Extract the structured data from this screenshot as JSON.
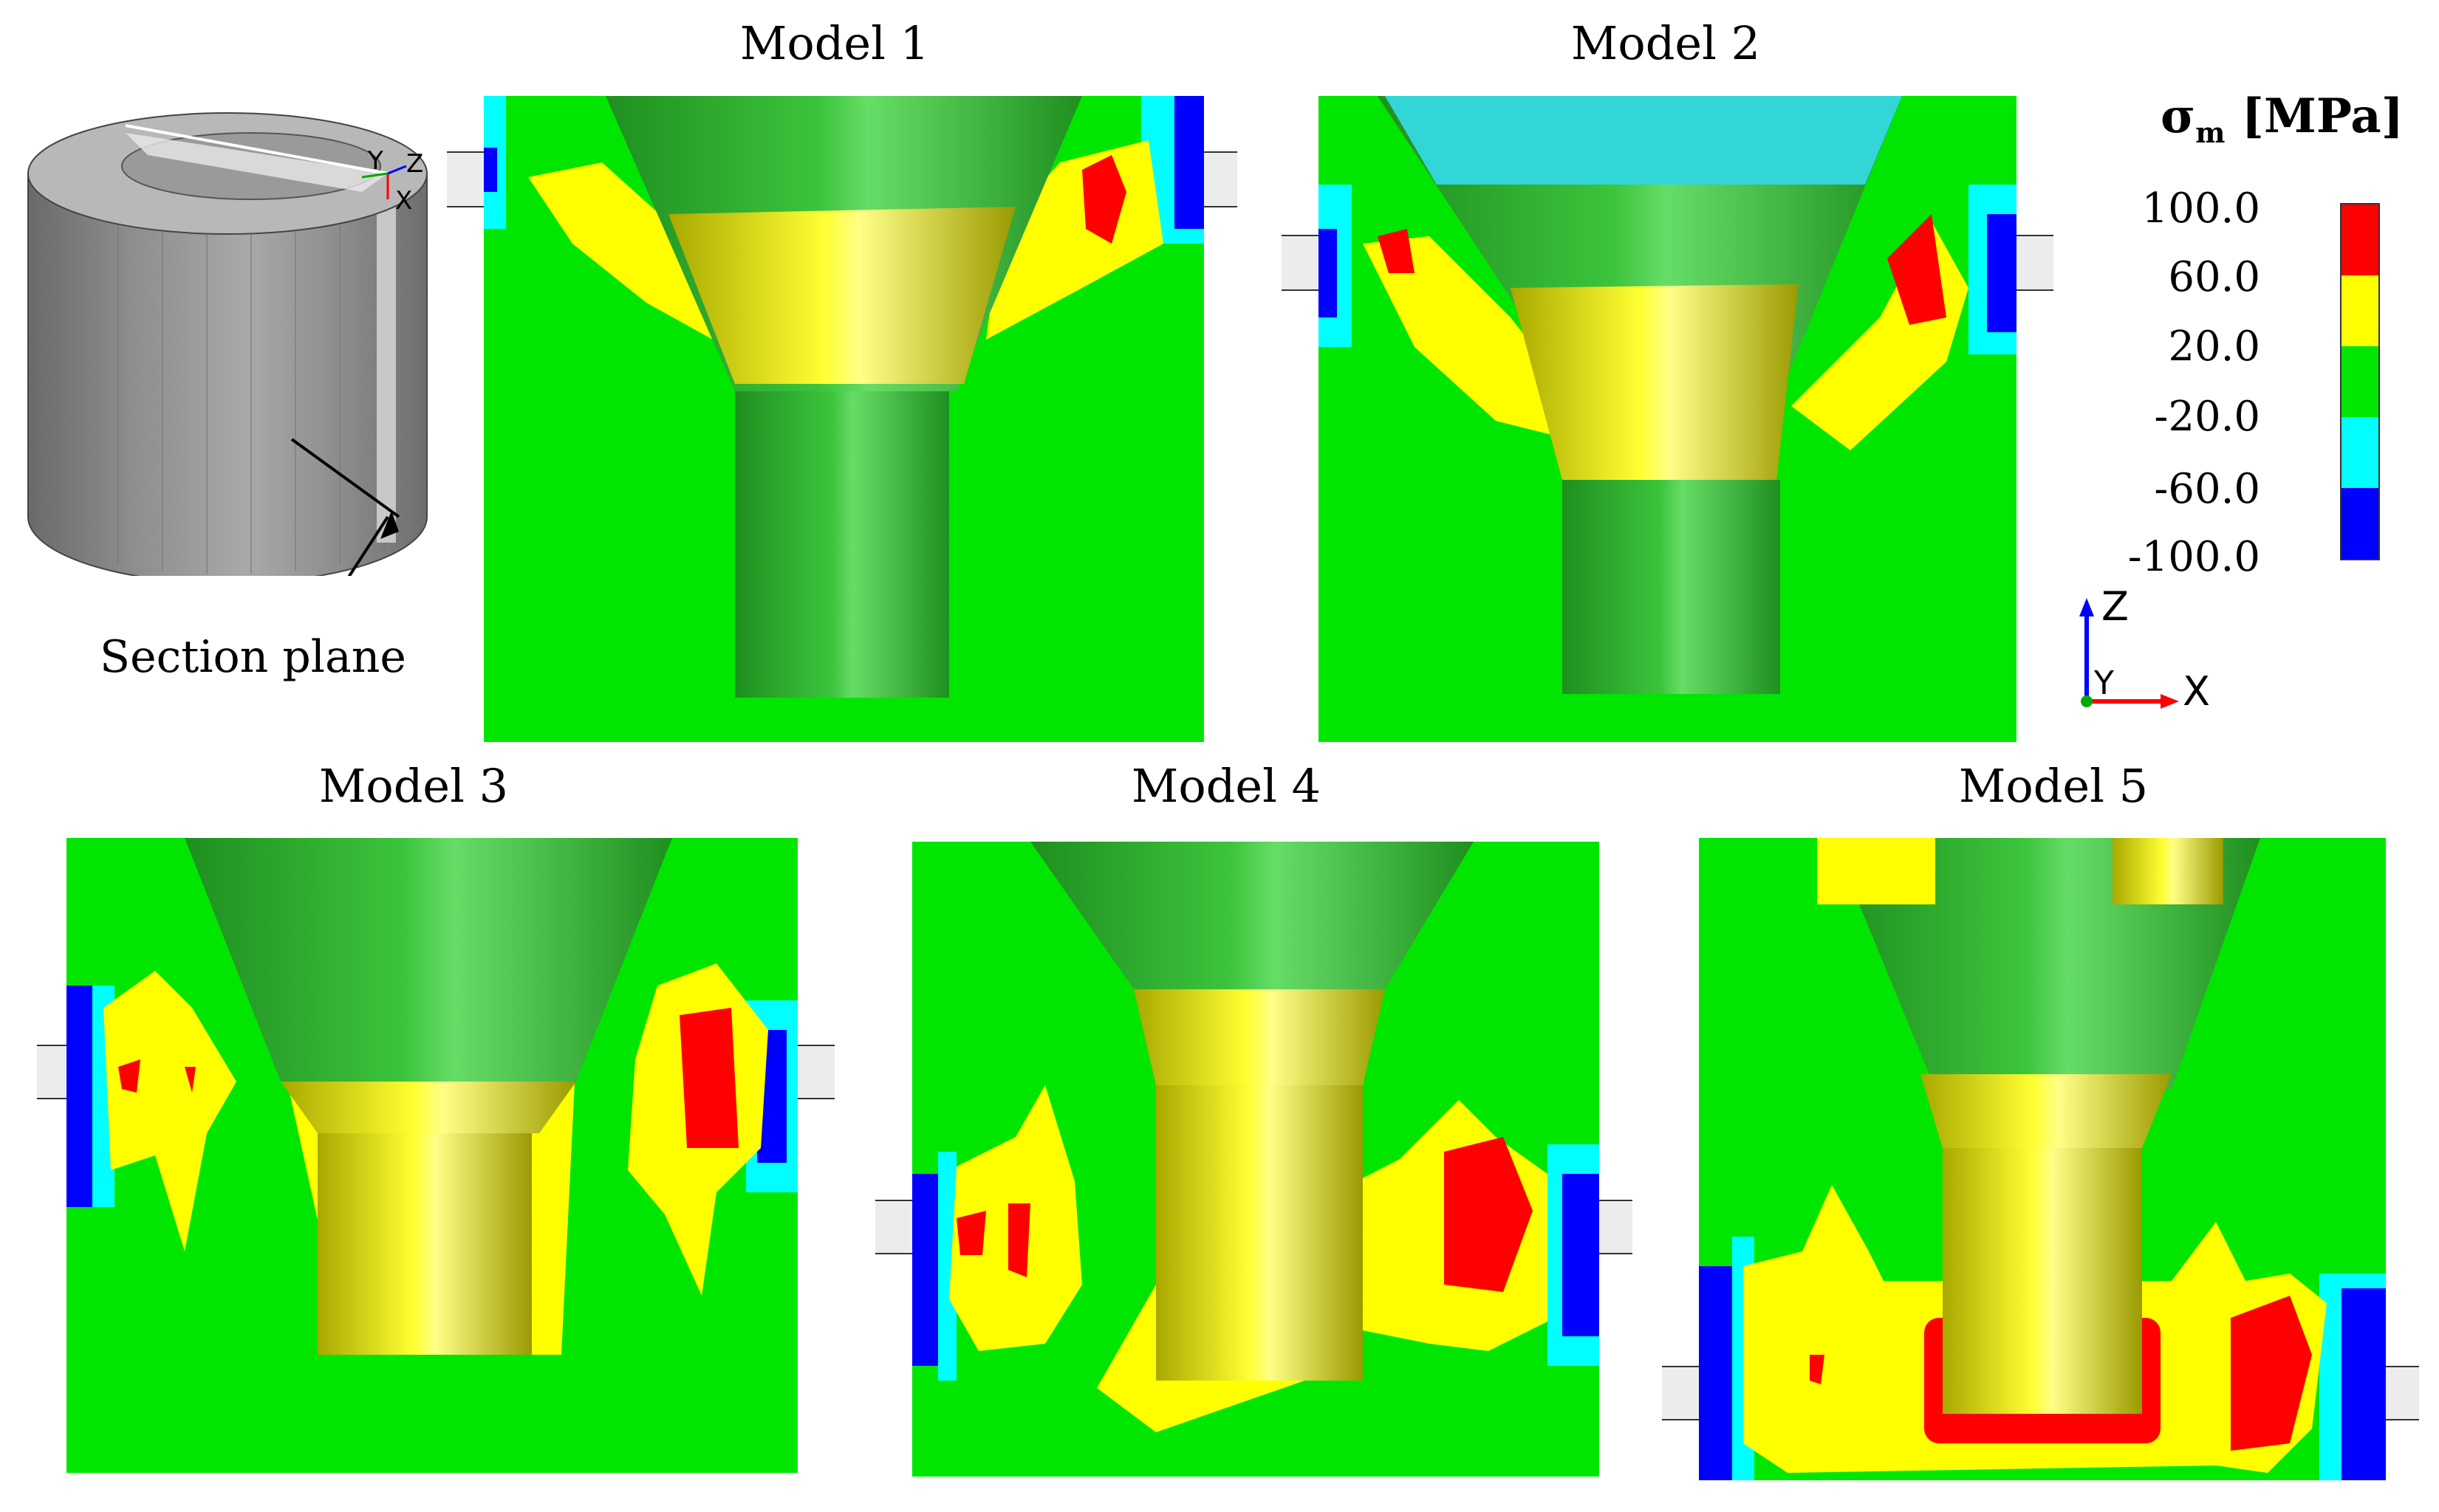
{
  "models": [
    {
      "id": 1,
      "title": "Model 1"
    },
    {
      "id": 2,
      "title": "Model 2"
    },
    {
      "id": 3,
      "title": "Model 3"
    },
    {
      "id": 4,
      "title": "Model 4"
    },
    {
      "id": 5,
      "title": "Model 5"
    }
  ],
  "legend": {
    "symbol": "σ",
    "subscript": "m",
    "unit": "[MPa]",
    "ticks": [
      "100.0",
      "60.0",
      "20.0",
      "-20.0",
      "-60.0",
      "-100.0"
    ],
    "colors": [
      "#ff0000",
      "#ffff00",
      "#00e600",
      "#00ffff",
      "#0000ff"
    ]
  },
  "cylinder": {
    "section_label": "Section plane",
    "axis_labels": {
      "y": "Y",
      "z": "Z",
      "x": "X"
    }
  },
  "coordinate_axes": {
    "z": "Z",
    "y": "Y",
    "x": "X"
  },
  "colors": {
    "green": "#00e600",
    "yellow": "#ffff00",
    "red": "#ff0000",
    "cyan": "#00ffff",
    "blue": "#0000ff",
    "die_green": "#2a9e2a",
    "die_yellow": "#c8c800"
  }
}
